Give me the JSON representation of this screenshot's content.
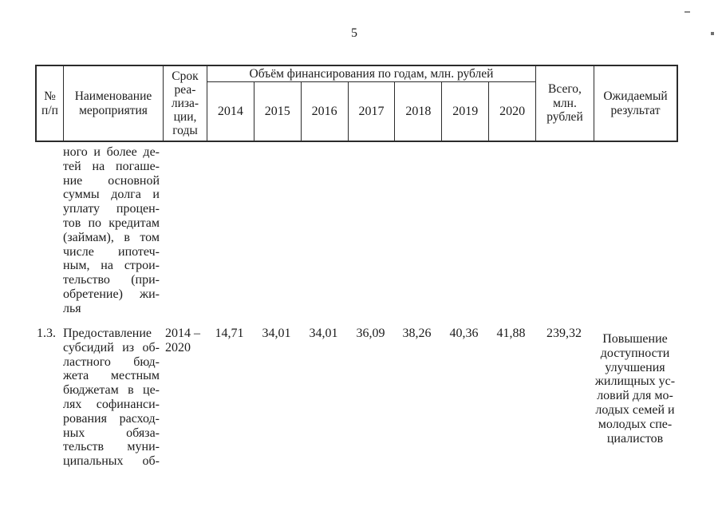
{
  "page": {
    "number": "5"
  },
  "appearance": {
    "ink_color": "#1c1c1c",
    "paper_color": "#ffffff"
  },
  "table": {
    "header": {
      "num": [
        "№",
        "п/п"
      ],
      "name": [
        "Наименование",
        "мероприятия"
      ],
      "term": [
        "Срок",
        "реа-",
        "лиза-",
        "ции,",
        "годы"
      ],
      "finance_span": "Объём финансирования по годам, млн. рублей",
      "years": [
        "2014",
        "2015",
        "2016",
        "2017",
        "2018",
        "2019",
        "2020"
      ],
      "total": [
        "Всего,",
        "млн.",
        "рублей"
      ],
      "result": [
        "Ожидаемый",
        "результат"
      ]
    },
    "rows": [
      {
        "num": "",
        "name": [
          "ного и более де-",
          "тей на погаше-",
          "ние основной",
          "суммы долга и",
          "уплату процен-",
          "тов по кредитам",
          "(займам), в том",
          "числе ипотеч-",
          "ным, на строи-",
          "тельство (при-",
          "обретение) жи-",
          "лья"
        ],
        "term": [],
        "values": [
          "",
          "",
          "",
          "",
          "",
          "",
          ""
        ],
        "total": "",
        "result": []
      },
      {
        "num": "1.3.",
        "name": [
          "Предоставление",
          "субсидий из об-",
          "ластного бюд-",
          "жета местным",
          "бюджетам в це-",
          "лях софинанси-",
          "рования расход-",
          "ных обяза-",
          "тельств муни-",
          "ципальных об-"
        ],
        "term": [
          "2014 –",
          "2020"
        ],
        "values": [
          "14,71",
          "34,01",
          "34,01",
          "36,09",
          "38,26",
          "40,36",
          "41,88"
        ],
        "total": "239,32",
        "result": [
          "Повышение",
          "доступности",
          "улучшения",
          "жилищных ус-",
          "ловий для мо-",
          "лодых семей и",
          "молодых спе-",
          "циалистов"
        ]
      }
    ]
  }
}
